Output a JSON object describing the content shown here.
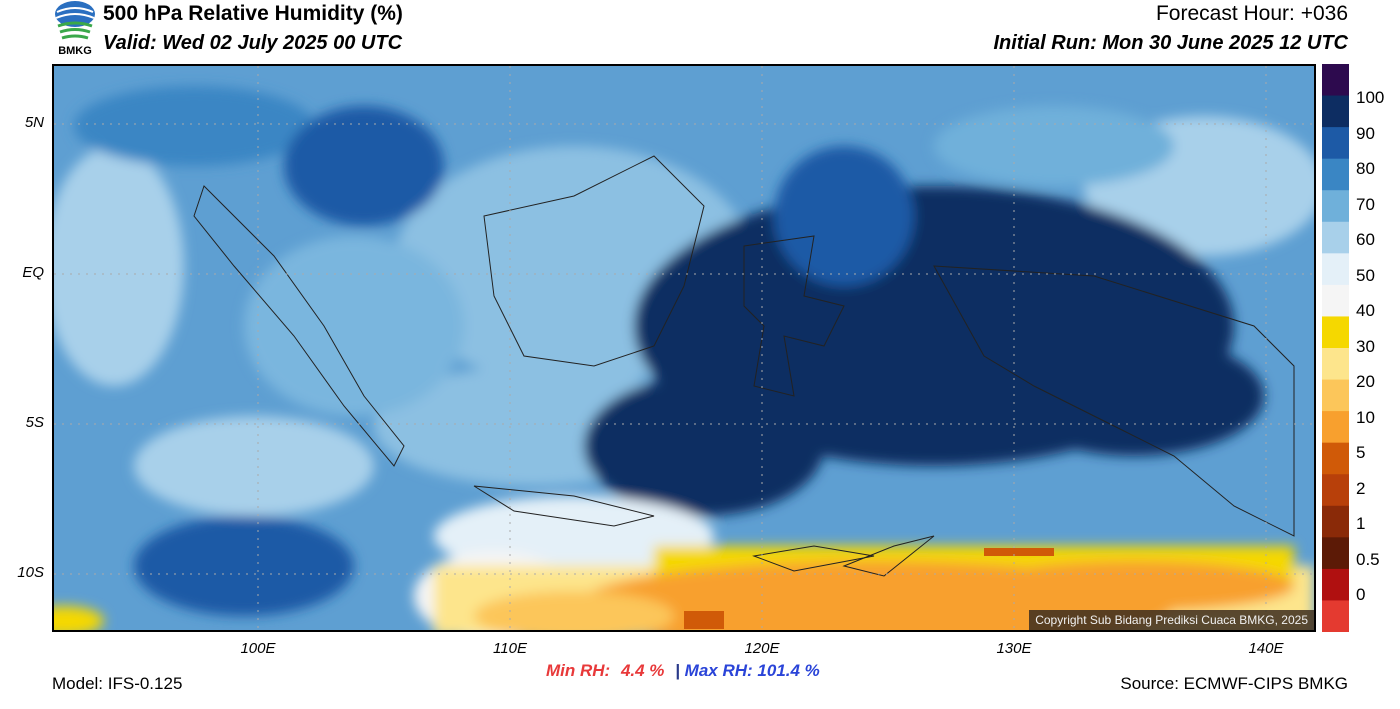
{
  "header": {
    "title": "500 hPa Relative Humidity (%)",
    "valid": "Valid: Wed 02 July 2025 00 UTC",
    "forecast_hour": "Forecast Hour: +036",
    "initial_run": "Initial Run: Mon 30 June 2025 12 UTC",
    "logo_text": "BMKG"
  },
  "axes": {
    "lat_labels": [
      "5N",
      "EQ",
      "5S",
      "10S"
    ],
    "lon_labels": [
      "100E",
      "110E",
      "120E",
      "130E",
      "140E"
    ]
  },
  "colorbar": {
    "labels": [
      "100",
      "90",
      "80",
      "70",
      "60",
      "50",
      "40",
      "30",
      "20",
      "10",
      "5",
      "2",
      "1",
      "0.5",
      "0"
    ],
    "colors": [
      "#2d0a4e",
      "#0d2d62",
      "#1d5aa6",
      "#3a86c4",
      "#6fb0da",
      "#a8d0ea",
      "#e4f0f8",
      "#f5f5f5",
      "#f5d800",
      "#fde58c",
      "#fcc65a",
      "#f8a02e",
      "#d05a08",
      "#b8400a",
      "#8a2a08",
      "#5c1a06",
      "#b01010",
      "#e43a30"
    ]
  },
  "stats": {
    "min_label": "Min RH:",
    "min_value": "4.4 %",
    "separator": "|",
    "max_label": "Max RH: 101.4 %"
  },
  "footer": {
    "model": "Model: IFS-0.125",
    "source": "Source: ECMWF-CIPS BMKG",
    "copyright": "Copyright Sub Bidang Prediksi Cuaca BMKG, 2025"
  }
}
